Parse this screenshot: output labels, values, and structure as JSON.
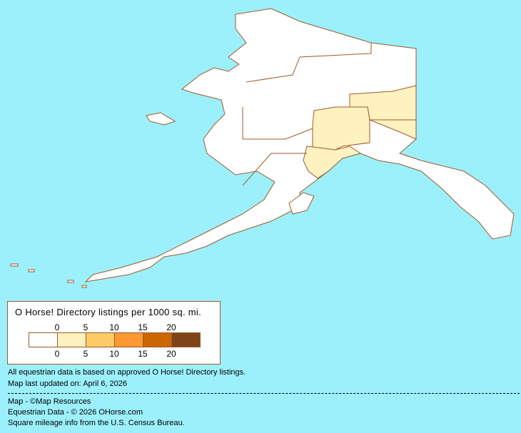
{
  "legend": {
    "title": "O Horse! Directory listings per 1000 sq. mi.",
    "top_ticks": [
      "0",
      "5",
      "10",
      "15",
      "20"
    ],
    "bottom_ticks": [
      "0",
      "5",
      "10",
      "15",
      "20"
    ],
    "colors": [
      "#FFFFFF",
      "#FDF2C0",
      "#FDCC66",
      "#FD9933",
      "#CC6600",
      "#7F4318"
    ]
  },
  "map": {
    "region": "Alaska",
    "background_color": "#9CF0FC",
    "border_color": "#9C5A2A",
    "regions_shaded": [
      {
        "name": "Interior east",
        "bin": "0-5"
      },
      {
        "name": "Interior central",
        "bin": "0-5"
      },
      {
        "name": "Southcentral",
        "bin": "0-5"
      }
    ]
  },
  "notes": {
    "line1": "All equestrian data is based on approved O Horse! Directory listings.",
    "line2": "Map last updated on: April 6, 2026"
  },
  "credits": {
    "map": "Map - ©Map Resources",
    "data": "Equestrian Data - © 2026 OHorse.com",
    "census": "Square mileage info from the U.S. Census Bureau."
  }
}
